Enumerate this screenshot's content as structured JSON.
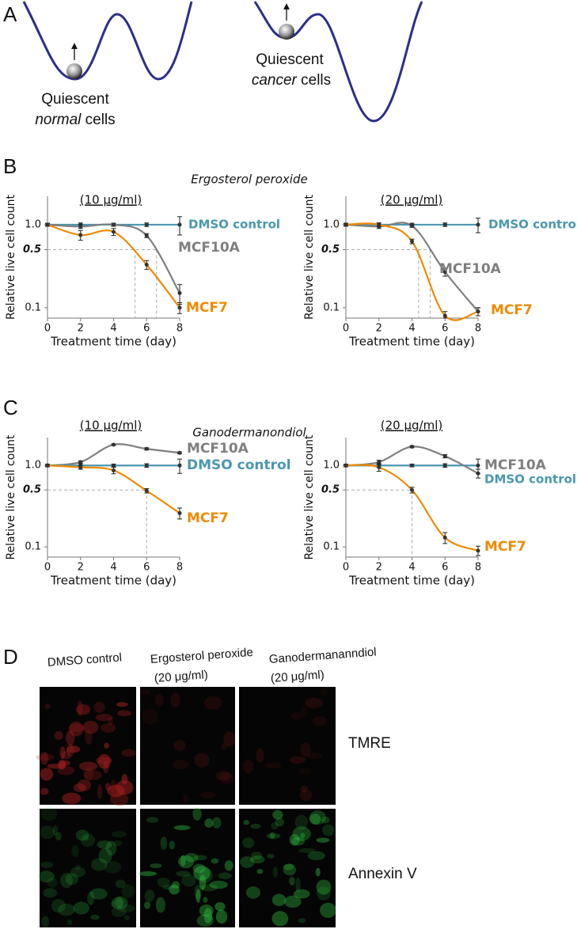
{
  "panel_labels": [
    "A",
    "B",
    "C",
    "D"
  ],
  "landscape": {
    "normal": {
      "first": "Quiescent",
      "italic": "normal",
      "rest": "cells"
    },
    "cancer": {
      "first": "Quiescent",
      "italic": "cancer",
      "rest": "cells"
    }
  },
  "group_titles": [
    "Ergosterol peroxide",
    "Ganodermanondiol"
  ],
  "chart_data": [
    {
      "type": "line",
      "title": "(10 μg/ml)",
      "x_label": "Treatment time (day)",
      "y_label": "Relative live cell count",
      "x": [
        0,
        2,
        4,
        6,
        8
      ],
      "xlim": [
        0,
        8
      ],
      "xticks": [
        0,
        2,
        4,
        6,
        8
      ],
      "yscale": "log",
      "ylim": [
        0.075,
        2.2
      ],
      "yticks": [
        0.1,
        0.5,
        {
          "value": 1,
          "label": "1.0"
        }
      ],
      "threshold": 0.5,
      "half_max_days": [
        5.3,
        6.6
      ],
      "series": [
        {
          "name": "DMSO control",
          "color": "#4a97b0",
          "values": [
            1,
            1,
            1,
            1,
            1
          ],
          "errors": [
            0.04,
            0.05,
            0.04,
            0.05,
            0.25
          ]
        },
        {
          "name": "MCF10A",
          "color": "#7f7f7f",
          "values": [
            1,
            0.95,
            1,
            0.74,
            0.15
          ],
          "errors": [
            0.03,
            0.05,
            0.04,
            0.04,
            0.04
          ]
        },
        {
          "name": "MCF7",
          "color": "#f08a00",
          "values": [
            1,
            0.75,
            0.82,
            0.33,
            0.1
          ],
          "errors": [
            0.04,
            0.1,
            0.08,
            0.04,
            0.015
          ]
        }
      ]
    },
    {
      "type": "line",
      "title": "(20 μg/ml)",
      "x_label": "Treatment time (day)",
      "y_label": "Relative live cell count",
      "x": [
        0,
        2,
        4,
        6,
        8
      ],
      "xlim": [
        0,
        8
      ],
      "xticks": [
        0,
        2,
        4,
        6,
        8
      ],
      "yscale": "log",
      "ylim": [
        0.075,
        2.2
      ],
      "yticks": [
        0.1,
        0.5,
        {
          "value": 1,
          "label": "1.0"
        }
      ],
      "threshold": 0.5,
      "half_max_days": [
        4.4,
        5.1
      ],
      "series": [
        {
          "name": "DMSO control",
          "color": "#4a97b0",
          "values": [
            1,
            1,
            1,
            1,
            1
          ],
          "errors": [
            0.04,
            0.05,
            0.04,
            0.05,
            0.2
          ]
        },
        {
          "name": "MCF10A",
          "color": "#7f7f7f",
          "values": [
            1,
            0.95,
            0.97,
            0.27,
            0.09
          ],
          "errors": [
            0.03,
            0.05,
            0.04,
            0.03,
            0.01
          ]
        },
        {
          "name": "MCF7",
          "color": "#f08a00",
          "values": [
            1,
            1,
            0.63,
            0.08,
            0.09
          ],
          "errors": [
            0.04,
            0.05,
            0.04,
            0.01,
            0.01
          ]
        }
      ]
    },
    {
      "type": "line",
      "title": "(10 μg/ml)",
      "x_label": "Treatment time (day)",
      "y_label": "Relative live cell count",
      "x": [
        0,
        2,
        4,
        6,
        8
      ],
      "xlim": [
        0,
        8
      ],
      "xticks": [
        0,
        2,
        4,
        6,
        8
      ],
      "yscale": "log",
      "ylim": [
        0.075,
        2.2
      ],
      "yticks": [
        0.1,
        0.5,
        {
          "value": 1,
          "label": "1.0"
        }
      ],
      "threshold": 0.5,
      "half_max_days": [
        6
      ],
      "series": [
        {
          "name": "MCF10A",
          "color": "#7f7f7f",
          "values": [
            1,
            1.1,
            1.8,
            1.6,
            1.43
          ],
          "errors": [
            0.03,
            0.04,
            0.04,
            0.05,
            0.04
          ]
        },
        {
          "name": "DMSO control",
          "color": "#4a97b0",
          "values": [
            1,
            1,
            1,
            1,
            1
          ],
          "errors": [
            0.04,
            0.05,
            0.04,
            0.05,
            0.2
          ]
        },
        {
          "name": "MCF7",
          "color": "#f08a00",
          "values": [
            1,
            0.95,
            0.87,
            0.49,
            0.26
          ],
          "errors": [
            0.04,
            0.05,
            0.08,
            0.03,
            0.04
          ]
        }
      ]
    },
    {
      "type": "line",
      "title": "(20 μg/ml)",
      "x_label": "Treatment time (day)",
      "y_label": "Relative live cell count",
      "x": [
        0,
        2,
        4,
        6,
        8
      ],
      "xlim": [
        0,
        8
      ],
      "xticks": [
        0,
        2,
        4,
        6,
        8
      ],
      "yscale": "log",
      "ylim": [
        0.075,
        2.2
      ],
      "yticks": [
        0.1,
        0.5,
        {
          "value": 1,
          "label": "1.0"
        }
      ],
      "threshold": 0.5,
      "half_max_days": [
        4
      ],
      "series": [
        {
          "name": "DMSO control",
          "color": "#4a97b0",
          "values": [
            1,
            1,
            1,
            1,
            1
          ],
          "errors": [
            0.04,
            0.05,
            0.04,
            0.05,
            0.2
          ]
        },
        {
          "name": "MCF10A",
          "color": "#7f7f7f",
          "values": [
            1,
            1.1,
            1.7,
            1.3,
            0.8
          ],
          "errors": [
            0.03,
            0.06,
            0.05,
            0.06,
            0.1
          ]
        },
        {
          "name": "MCF7",
          "color": "#f08a00",
          "values": [
            1,
            0.95,
            0.5,
            0.13,
            0.09
          ],
          "errors": [
            0.04,
            0.1,
            0.04,
            0.02,
            0.012
          ]
        }
      ]
    }
  ],
  "microscopy": {
    "columns": [
      {
        "name": "DMSO control"
      },
      {
        "name": "Ergosterol peroxide",
        "dose": "(20 μg/ml)"
      },
      {
        "name": "Ganodermananndiol",
        "dose": "(20 μg/ml)"
      }
    ],
    "rows": [
      "TMRE",
      "Annexin V"
    ]
  }
}
